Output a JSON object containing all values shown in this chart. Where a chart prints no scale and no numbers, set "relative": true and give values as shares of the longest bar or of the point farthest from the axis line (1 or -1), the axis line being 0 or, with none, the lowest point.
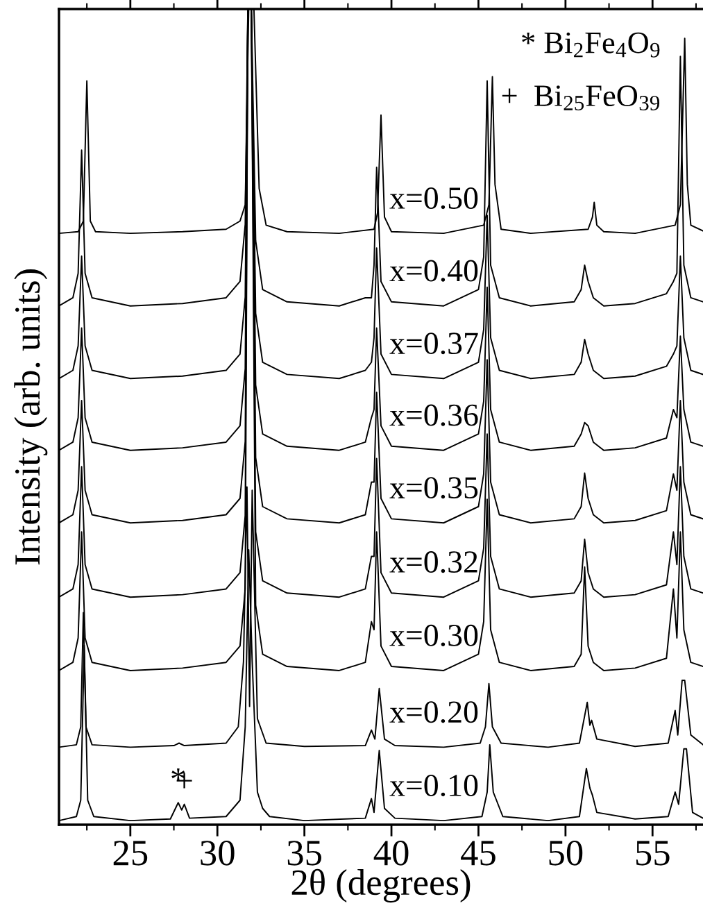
{
  "chart_data": {
    "type": "line",
    "relative": true,
    "xlabel": "2θ (degrees)",
    "ylabel": "Intensity (arb. units)",
    "xlim": [
      20.9,
      57.9
    ],
    "xticks": [
      25,
      30,
      35,
      40,
      45,
      50,
      55
    ],
    "grid": false,
    "legend": false,
    "marker": "none",
    "line_style": "solid",
    "x": [
      20.9,
      21.7,
      22.0,
      22.2,
      22.4,
      22.8,
      25,
      28,
      30.5,
      31.3,
      31.6,
      31.75,
      31.95,
      32.2,
      32.6,
      34,
      37,
      38.5,
      38.85,
      39.0,
      39.15,
      39.4,
      40,
      43,
      45.0,
      45.3,
      45.5,
      45.7,
      46.2,
      48,
      50.5,
      50.9,
      51.1,
      51.3,
      51.6,
      52.2,
      54,
      55.8,
      56.2,
      56.4,
      56.6,
      56.8,
      57.2,
      57.9
    ],
    "series": [
      {
        "name": "x=0.50",
        "color": "#000000",
        "x": [
          20.9,
          22.0,
          22.3,
          22.5,
          22.7,
          23,
          25,
          28,
          30.5,
          31.3,
          31.6,
          31.8,
          32.1,
          32.4,
          32.8,
          34,
          37,
          39.0,
          39.2,
          39.4,
          39.6,
          40,
          43,
          45.3,
          45.6,
          45.8,
          45.95,
          46.3,
          48,
          51.3,
          51.55,
          51.65,
          51.8,
          52.2,
          54,
          56.3,
          56.6,
          56.85,
          57.0,
          57.2,
          57.9
        ],
        "values": [
          0.725,
          0.727,
          0.74,
          0.912,
          0.74,
          0.727,
          0.725,
          0.727,
          0.73,
          0.74,
          0.76,
          1.0,
          1.0,
          0.78,
          0.735,
          0.727,
          0.725,
          0.73,
          0.75,
          0.87,
          0.745,
          0.727,
          0.725,
          0.735,
          0.76,
          0.917,
          0.785,
          0.73,
          0.725,
          0.73,
          0.745,
          0.763,
          0.735,
          0.727,
          0.725,
          0.735,
          0.76,
          0.964,
          0.785,
          0.735,
          0.728
        ]
      },
      {
        "name": "x=0.40",
        "color": "#000000",
        "values": [
          0.636,
          0.646,
          0.676,
          0.827,
          0.676,
          0.646,
          0.636,
          0.639,
          0.646,
          0.666,
          0.736,
          1.0,
          1.0,
          0.716,
          0.656,
          0.641,
          0.636,
          0.646,
          0.646,
          0.686,
          0.806,
          0.666,
          0.641,
          0.636,
          0.656,
          0.696,
          0.912,
          0.686,
          0.646,
          0.636,
          0.641,
          0.656,
          0.686,
          0.666,
          0.646,
          0.636,
          0.639,
          0.651,
          0.666,
          0.676,
          0.942,
          0.686,
          0.646,
          0.641
        ]
      },
      {
        "name": "x=0.37",
        "color": "#000000",
        "values": [
          0.547,
          0.557,
          0.587,
          0.697,
          0.587,
          0.557,
          0.547,
          0.55,
          0.557,
          0.577,
          0.647,
          1.0,
          1.0,
          0.627,
          0.567,
          0.552,
          0.547,
          0.557,
          0.567,
          0.597,
          0.707,
          0.577,
          0.552,
          0.547,
          0.567,
          0.607,
          0.747,
          0.597,
          0.557,
          0.547,
          0.552,
          0.567,
          0.595,
          0.577,
          0.557,
          0.547,
          0.55,
          0.562,
          0.577,
          0.587,
          0.697,
          0.597,
          0.557,
          0.552
        ]
      },
      {
        "name": "x=0.36",
        "color": "#000000",
        "values": [
          0.459,
          0.469,
          0.499,
          0.609,
          0.499,
          0.469,
          0.459,
          0.462,
          0.469,
          0.489,
          0.559,
          1.0,
          1.0,
          0.539,
          0.479,
          0.464,
          0.459,
          0.469,
          0.499,
          0.509,
          0.609,
          0.489,
          0.464,
          0.459,
          0.479,
          0.519,
          0.659,
          0.509,
          0.469,
          0.459,
          0.464,
          0.479,
          0.493,
          0.489,
          0.469,
          0.459,
          0.462,
          0.474,
          0.509,
          0.499,
          0.599,
          0.509,
          0.469,
          0.464
        ]
      },
      {
        "name": "x=0.35",
        "color": "#000000",
        "values": [
          0.37,
          0.38,
          0.41,
          0.52,
          0.41,
          0.38,
          0.37,
          0.373,
          0.38,
          0.4,
          0.47,
          1.0,
          1.0,
          0.45,
          0.39,
          0.375,
          0.37,
          0.38,
          0.42,
          0.42,
          0.53,
          0.4,
          0.375,
          0.37,
          0.39,
          0.43,
          0.57,
          0.42,
          0.38,
          0.37,
          0.375,
          0.39,
          0.431,
          0.4,
          0.38,
          0.37,
          0.373,
          0.385,
          0.43,
          0.41,
          0.52,
          0.42,
          0.38,
          0.375
        ]
      },
      {
        "name": "x=0.32",
        "color": "#000000",
        "values": [
          0.279,
          0.289,
          0.319,
          0.439,
          0.319,
          0.289,
          0.279,
          0.282,
          0.289,
          0.309,
          0.379,
          1.0,
          1.0,
          0.359,
          0.299,
          0.284,
          0.279,
          0.289,
          0.329,
          0.329,
          0.449,
          0.309,
          0.284,
          0.279,
          0.299,
          0.339,
          0.479,
          0.329,
          0.289,
          0.279,
          0.284,
          0.299,
          0.35,
          0.309,
          0.289,
          0.279,
          0.282,
          0.294,
          0.359,
          0.319,
          0.439,
          0.329,
          0.289,
          0.284
        ]
      },
      {
        "name": "x=0.30",
        "color": "#000000",
        "values": [
          0.189,
          0.199,
          0.229,
          0.359,
          0.229,
          0.199,
          0.189,
          0.192,
          0.199,
          0.219,
          0.289,
          1.0,
          1.0,
          0.269,
          0.209,
          0.194,
          0.189,
          0.199,
          0.249,
          0.239,
          0.359,
          0.219,
          0.194,
          0.189,
          0.209,
          0.249,
          0.399,
          0.239,
          0.199,
          0.189,
          0.194,
          0.209,
          0.316,
          0.219,
          0.199,
          0.189,
          0.192,
          0.204,
          0.289,
          0.229,
          0.359,
          0.239,
          0.199,
          0.194
        ]
      },
      {
        "name": "x=0.20",
        "color": "#000000",
        "x": [
          20.9,
          21.9,
          22.15,
          22.3,
          22.45,
          22.8,
          25,
          27.5,
          27.8,
          28.1,
          30.5,
          31.2,
          31.5,
          31.7,
          31.85,
          32.0,
          32.3,
          32.8,
          35,
          38.5,
          38.85,
          39.05,
          39.3,
          39.6,
          40.2,
          43,
          45.1,
          45.4,
          45.6,
          45.8,
          46.3,
          49,
          50.8,
          51.25,
          51.4,
          51.5,
          51.8,
          54,
          55.9,
          56.3,
          56.45,
          56.7,
          56.85,
          57.2,
          57.9
        ],
        "values": [
          0.095,
          0.098,
          0.12,
          0.26,
          0.12,
          0.098,
          0.095,
          0.097,
          0.1,
          0.097,
          0.1,
          0.12,
          0.2,
          0.414,
          0.145,
          0.41,
          0.13,
          0.1,
          0.096,
          0.097,
          0.116,
          0.105,
          0.167,
          0.105,
          0.097,
          0.095,
          0.1,
          0.12,
          0.173,
          0.12,
          0.1,
          0.095,
          0.1,
          0.15,
          0.122,
          0.128,
          0.105,
          0.096,
          0.1,
          0.14,
          0.11,
          0.177,
          0.177,
          0.11,
          0.098
        ]
      },
      {
        "name": "x=0.10",
        "color": "#000000",
        "x": [
          20.9,
          21.9,
          22.15,
          22.35,
          22.55,
          22.9,
          25,
          27.3,
          27.75,
          27.95,
          28.1,
          28.4,
          30.5,
          31.3,
          31.6,
          31.8,
          32.0,
          32.3,
          32.6,
          33,
          35,
          38.5,
          38.85,
          39.0,
          39.3,
          39.6,
          40.2,
          43,
          45.2,
          45.5,
          45.65,
          45.85,
          46.4,
          49,
          50.8,
          51.2,
          51.4,
          51.55,
          51.8,
          54,
          55.9,
          56.3,
          56.5,
          56.8,
          56.95,
          57.3,
          57.9
        ],
        "values": [
          0.005,
          0.01,
          0.03,
          0.22,
          0.03,
          0.01,
          0.005,
          0.007,
          0.027,
          0.018,
          0.025,
          0.008,
          0.01,
          0.03,
          0.12,
          0.337,
          0.2,
          0.04,
          0.02,
          0.01,
          0.005,
          0.008,
          0.032,
          0.015,
          0.091,
          0.02,
          0.008,
          0.005,
          0.01,
          0.04,
          0.098,
          0.04,
          0.01,
          0.005,
          0.01,
          0.069,
          0.045,
          0.036,
          0.015,
          0.007,
          0.01,
          0.04,
          0.025,
          0.093,
          0.093,
          0.015,
          0.008
        ]
      }
    ],
    "annotations": [
      "* Bi$_{2}$Fe$_{4}$O$_{9}$",
      "+  Bi$_{25}$FeO$_{39}$",
      {
        "text": "*",
        "x": 27.75,
        "y": 0.027
      },
      {
        "text": "+",
        "x": 28.1,
        "y": 0.025
      }
    ]
  }
}
